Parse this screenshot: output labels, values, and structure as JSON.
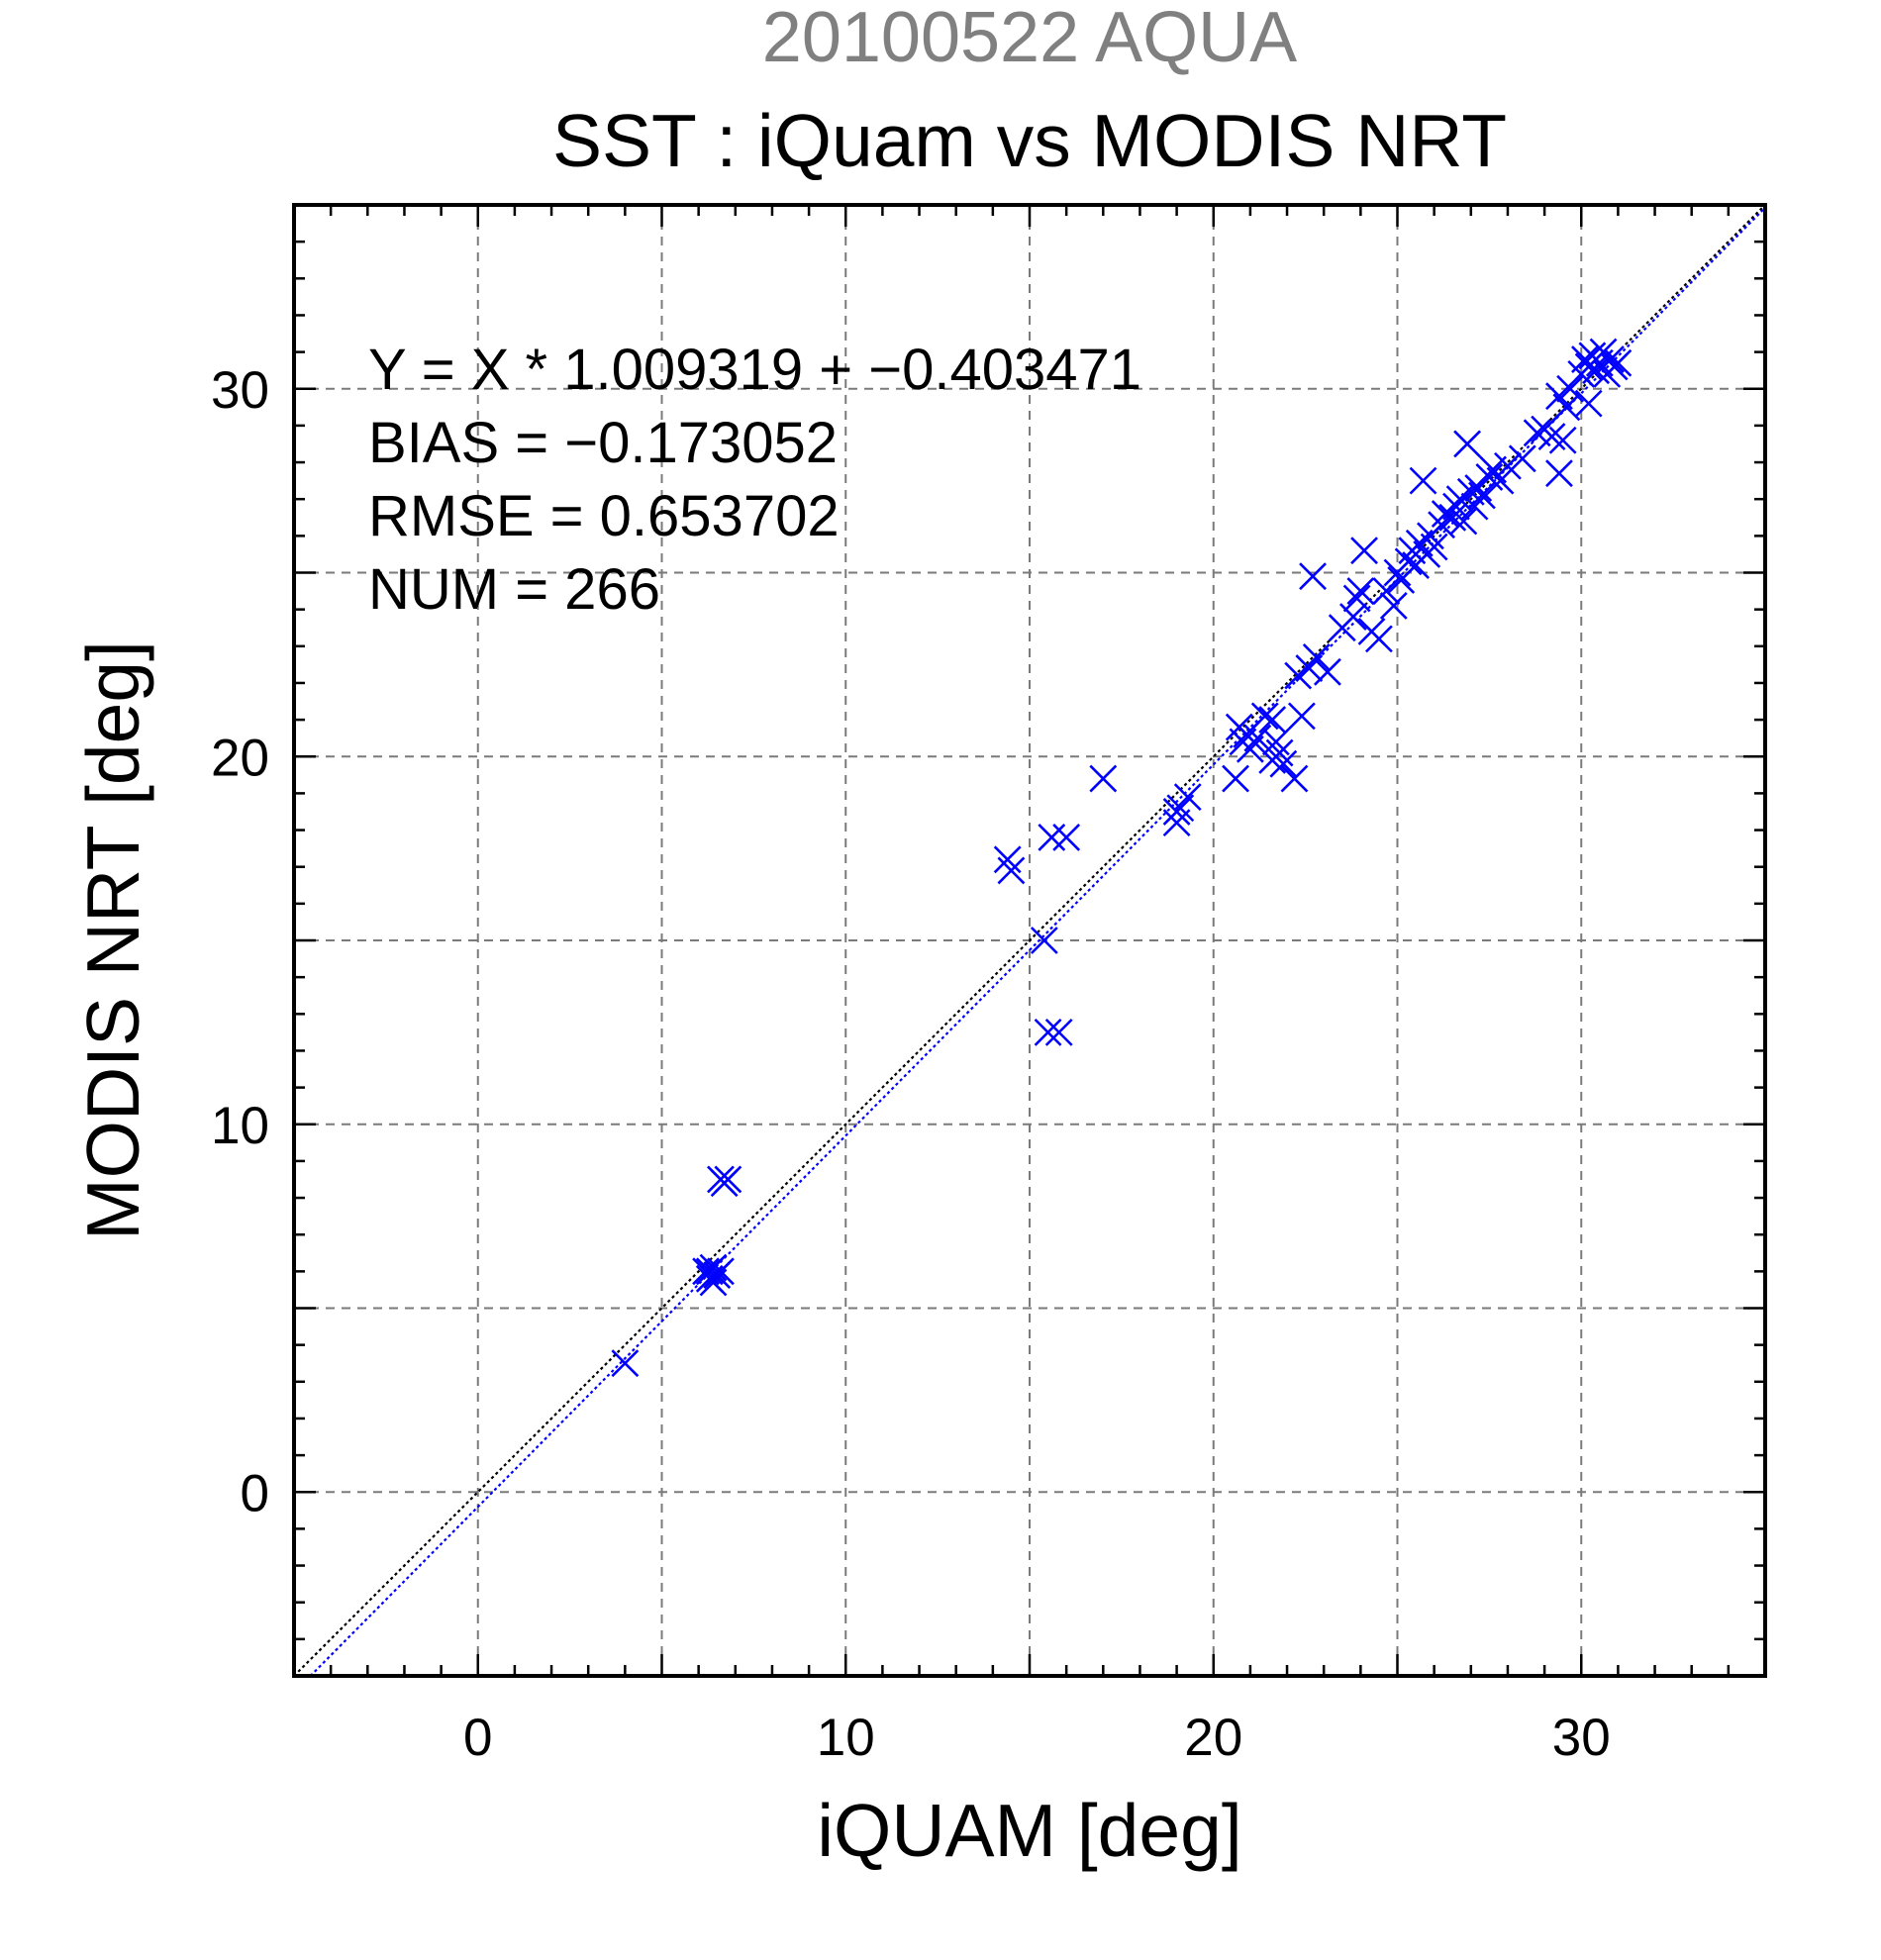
{
  "header": {
    "sup_title": "20100522 AQUA",
    "title": "SST : iQuam vs MODIS NRT"
  },
  "stats": [
    "Y = X * 1.009319 + −0.403471",
    "BIAS = −0.173052",
    "RMSE = 0.653702",
    "NUM = 266"
  ],
  "colors": {
    "markers": "#0000ff",
    "fit_line": "#0000ff",
    "one_to_one_line": "#000000"
  },
  "chart_data": {
    "type": "scatter",
    "xlabel": "iQUAM [deg]",
    "ylabel": "MODIS NRT [deg]",
    "xlim": [
      -5,
      35
    ],
    "ylim": [
      -5,
      35
    ],
    "xticks": [
      0,
      10,
      20,
      30
    ],
    "yticks": [
      0,
      10,
      20,
      30
    ],
    "minor_tick_step": 1,
    "grid": true,
    "grid_step": 5,
    "marker": "x",
    "reference_lines": [
      {
        "kind": "one-to-one",
        "slope": 1,
        "intercept": 0,
        "color": "#000000"
      },
      {
        "kind": "regression-fit",
        "slope": 1.009319,
        "intercept": -0.403471,
        "color": "#0000ff"
      }
    ],
    "points": [
      [
        4.0,
        3.5
      ],
      [
        6.2,
        6.0
      ],
      [
        6.3,
        5.8
      ],
      [
        6.4,
        6.1
      ],
      [
        6.5,
        5.9
      ],
      [
        6.6,
        6.0
      ],
      [
        6.4,
        5.7
      ],
      [
        6.3,
        6.0
      ],
      [
        6.7,
        8.4
      ],
      [
        6.8,
        8.5
      ],
      [
        6.6,
        8.5
      ],
      [
        14.4,
        17.2
      ],
      [
        14.5,
        16.9
      ],
      [
        15.4,
        15.0
      ],
      [
        15.5,
        12.5
      ],
      [
        15.8,
        12.5
      ],
      [
        15.6,
        17.8
      ],
      [
        16.0,
        17.8
      ],
      [
        17.0,
        19.4
      ],
      [
        19.0,
        18.2
      ],
      [
        19.1,
        18.6
      ],
      [
        19.3,
        18.9
      ],
      [
        19.0,
        18.5
      ],
      [
        20.6,
        19.4
      ],
      [
        20.8,
        20.4
      ],
      [
        20.9,
        20.6
      ],
      [
        21.0,
        20.2
      ],
      [
        20.7,
        20.8
      ],
      [
        21.2,
        20.5
      ],
      [
        21.4,
        21.1
      ],
      [
        21.6,
        21.0
      ],
      [
        21.7,
        20.4
      ],
      [
        21.6,
        19.9
      ],
      [
        21.8,
        20.1
      ],
      [
        21.9,
        19.8
      ],
      [
        22.2,
        19.4
      ],
      [
        22.4,
        21.1
      ],
      [
        22.3,
        22.2
      ],
      [
        22.6,
        22.4
      ],
      [
        22.8,
        22.7
      ],
      [
        22.7,
        24.9
      ],
      [
        23.1,
        22.3
      ],
      [
        23.5,
        23.5
      ],
      [
        23.8,
        23.8
      ],
      [
        23.9,
        24.3
      ],
      [
        24.0,
        24.5
      ],
      [
        24.1,
        25.6
      ],
      [
        24.3,
        23.4
      ],
      [
        24.5,
        23.2
      ],
      [
        24.7,
        24.5
      ],
      [
        24.9,
        24.1
      ],
      [
        25.0,
        25.0
      ],
      [
        25.1,
        24.8
      ],
      [
        25.3,
        25.3
      ],
      [
        25.4,
        25.6
      ],
      [
        25.5,
        25.2
      ],
      [
        25.6,
        25.8
      ],
      [
        25.8,
        25.5
      ],
      [
        25.7,
        27.5
      ],
      [
        25.9,
        26.0
      ],
      [
        26.0,
        25.7
      ],
      [
        26.2,
        26.3
      ],
      [
        26.3,
        26.6
      ],
      [
        26.5,
        26.5
      ],
      [
        26.6,
        26.8
      ],
      [
        26.7,
        27.0
      ],
      [
        26.8,
        26.4
      ],
      [
        26.9,
        28.5
      ],
      [
        27.0,
        27.2
      ],
      [
        27.1,
        26.8
      ],
      [
        27.2,
        27.3
      ],
      [
        27.3,
        27.1
      ],
      [
        27.5,
        27.6
      ],
      [
        27.6,
        27.8
      ],
      [
        27.8,
        27.5
      ],
      [
        28.0,
        27.9
      ],
      [
        28.4,
        28.1
      ],
      [
        28.8,
        28.8
      ],
      [
        29.0,
        28.9
      ],
      [
        29.2,
        28.7
      ],
      [
        29.4,
        27.7
      ],
      [
        29.5,
        28.6
      ],
      [
        29.4,
        29.8
      ],
      [
        29.6,
        29.5
      ],
      [
        29.7,
        30.0
      ],
      [
        30.0,
        30.4
      ],
      [
        30.1,
        30.8
      ],
      [
        30.2,
        30.6
      ],
      [
        30.2,
        29.6
      ],
      [
        30.3,
        30.9
      ],
      [
        30.4,
        30.5
      ],
      [
        30.5,
        30.7
      ],
      [
        30.6,
        31.0
      ],
      [
        30.7,
        30.4
      ],
      [
        30.8,
        30.8
      ],
      [
        30.9,
        30.6
      ],
      [
        31.0,
        30.7
      ]
    ]
  }
}
